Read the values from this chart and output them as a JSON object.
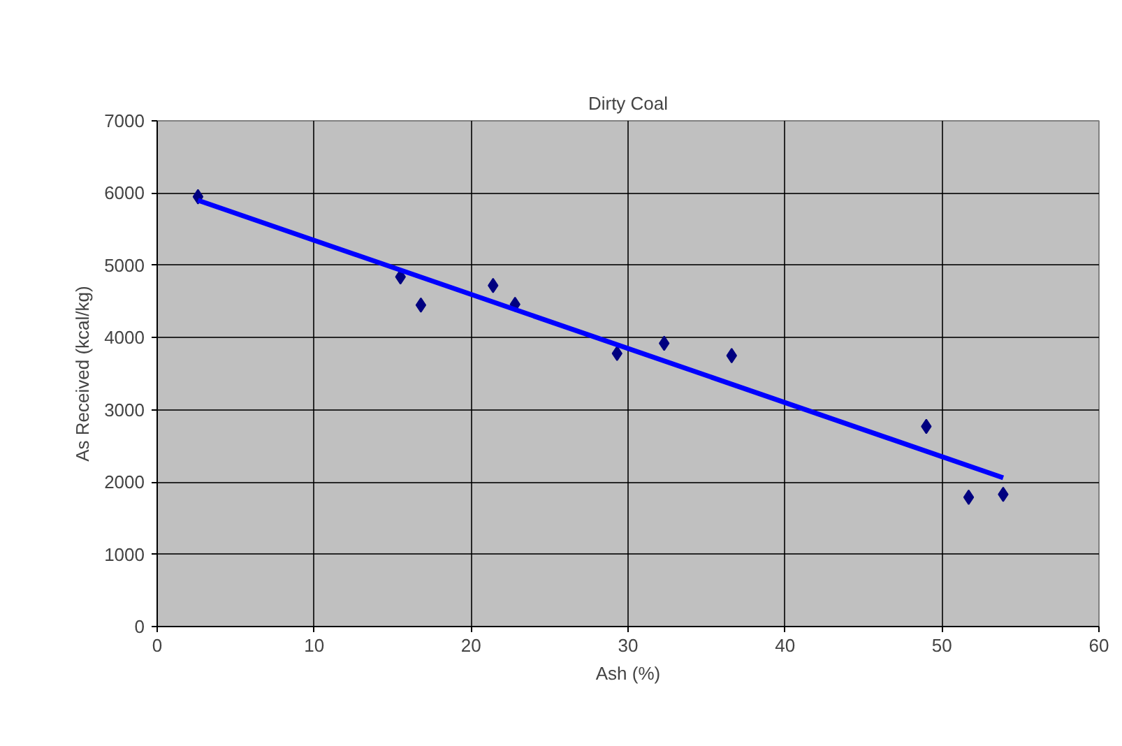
{
  "chart_data": {
    "type": "scatter",
    "title": "Dirty Coal",
    "xlabel": "Ash (%)",
    "ylabel": "As Received (kcal/kg)",
    "series": [
      {
        "color": "#000080",
        "marker": "diamond",
        "x": [
          2.6,
          15.5,
          16.8,
          21.4,
          22.8,
          29.3,
          32.3,
          36.6,
          49.0,
          51.7,
          53.9
        ],
        "values": [
          5950,
          4840,
          4450,
          4720,
          4460,
          3780,
          3920,
          3750,
          2770,
          1790,
          1830
        ]
      },
      {
        "type": "line",
        "color": "#0000ff",
        "x": [
          2.6,
          53.9
        ],
        "values": [
          5900,
          2060
        ]
      }
    ],
    "xlim": [
      0,
      60
    ],
    "xticks": [
      0,
      10,
      20,
      30,
      40,
      50,
      60
    ],
    "ylim": [
      0,
      7000
    ],
    "yticks": [
      0,
      1000,
      2000,
      3000,
      4000,
      5000,
      6000,
      7000
    ],
    "grid": true
  }
}
